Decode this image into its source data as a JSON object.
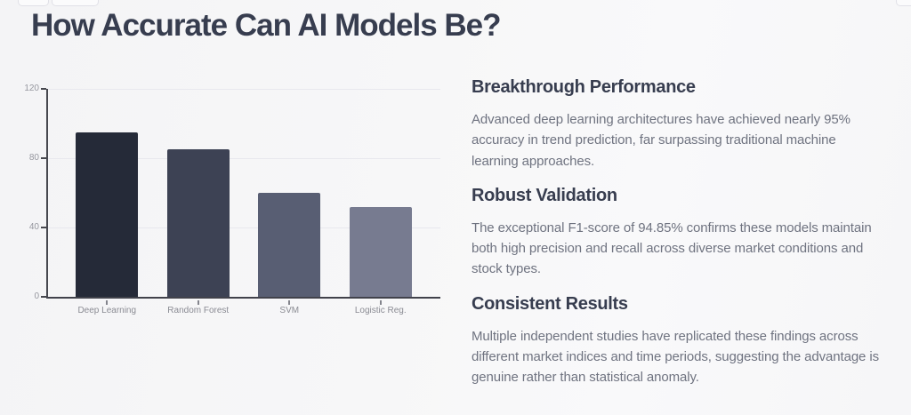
{
  "page": {
    "title": "How Accurate Can AI Models Be?"
  },
  "colors": {
    "background": "#f7f7f8",
    "heading": "#373d4f",
    "body_text": "#6f7380",
    "axis": "#47484f",
    "grid": "#e8e8ee",
    "tick_label": "#96979f"
  },
  "chart_data": {
    "type": "bar",
    "categories": [
      "Deep Learning",
      "Random Forest",
      "SVM",
      "Logistic Reg."
    ],
    "values": [
      95,
      85,
      60,
      52
    ],
    "bar_colors": [
      "#252a38",
      "#3d4254",
      "#585e73",
      "#777b90"
    ],
    "title": "",
    "xlabel": "",
    "ylabel": "",
    "ylim": [
      0,
      120
    ],
    "yticks": [
      0,
      40,
      80,
      120
    ],
    "grid": true,
    "legend": false
  },
  "sections": [
    {
      "heading": "Breakthrough Performance",
      "body": "Advanced deep learning architectures have achieved nearly 95%\naccuracy in trend prediction, far surpassing traditional machine\nlearning approaches."
    },
    {
      "heading": "Robust Validation",
      "body": "The exceptional F1-score of 94.85% confirms these models maintain\nboth high precision and recall across diverse market conditions and\nstock types."
    },
    {
      "heading": "Consistent Results",
      "body": "Multiple independent studies have replicated these findings across\ndifferent market indices and time periods, suggesting the advantage is\ngenuine rather than statistical anomaly."
    }
  ]
}
